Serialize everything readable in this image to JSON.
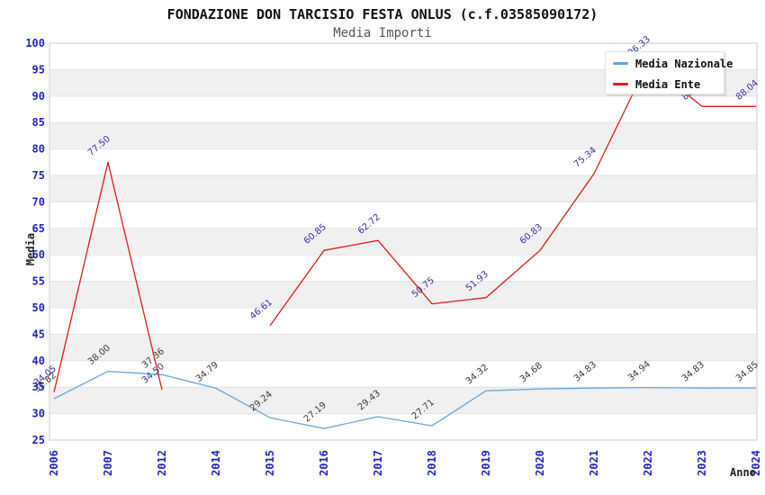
{
  "chart_data": {
    "type": "line",
    "title": "FONDAZIONE DON TARCISIO FESTA ONLUS (c.f.03585090172)",
    "subtitle": "Media Importi",
    "xlabel": "Anno",
    "ylabel": "Media",
    "ylim": [
      25,
      100
    ],
    "ytick_step": 5,
    "grid": true,
    "legend_position": "top-right",
    "categories": [
      "2006",
      "2007",
      "2012",
      "2014",
      "2015",
      "2016",
      "2017",
      "2018",
      "2019",
      "2020",
      "2021",
      "2022",
      "2023",
      "2024"
    ],
    "series": [
      {
        "name": "Media Nazionale",
        "color": "#6aa5d9",
        "label_color": "#3a3a3a",
        "values": [
          32.82,
          38.0,
          37.36,
          34.79,
          29.24,
          27.19,
          29.43,
          27.71,
          34.32,
          34.68,
          34.83,
          34.94,
          34.83,
          34.85
        ]
      },
      {
        "name": "Media Ente",
        "color": "#e31a1a",
        "label_color": "#333399",
        "values": [
          34.05,
          77.5,
          34.5,
          null,
          46.61,
          60.85,
          62.72,
          50.75,
          51.93,
          60.83,
          75.34,
          96.33,
          88.04,
          88.04
        ]
      }
    ],
    "colors": {
      "axis_tick": "#2222cc",
      "band": "#f0f0f0",
      "gridline": "#e3e3e3",
      "plot_border": "#c9c9c9",
      "title": "#111111",
      "subtitle": "#555555"
    }
  }
}
